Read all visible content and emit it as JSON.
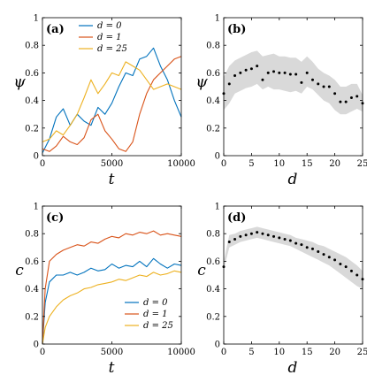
{
  "chart_data": [
    {
      "id": "a",
      "type": "line",
      "panel_label": "(a)",
      "xlabel": "t",
      "ylabel": "ψ",
      "xlim": [
        0,
        10000
      ],
      "ylim": [
        0,
        1
      ],
      "xticks": [
        0,
        5000,
        10000
      ],
      "xtick_labels": [
        "0",
        "5000",
        "10000"
      ],
      "yticks": [
        0,
        0.2,
        0.4,
        0.6,
        0.8,
        1
      ],
      "ytick_labels": [
        "0",
        "0.2",
        "0.4",
        "0.6",
        "0.8",
        "1"
      ],
      "legend_position": "top-left",
      "series": [
        {
          "name": "d = 0",
          "color": "#0072BD",
          "x": [
            0,
            500,
            1000,
            1500,
            2000,
            2500,
            3000,
            3500,
            4000,
            4500,
            5000,
            5500,
            6000,
            6500,
            7000,
            7500,
            8000,
            8500,
            9000,
            9500,
            10000
          ],
          "y": [
            0.02,
            0.12,
            0.28,
            0.34,
            0.22,
            0.3,
            0.25,
            0.22,
            0.35,
            0.3,
            0.38,
            0.5,
            0.6,
            0.58,
            0.7,
            0.72,
            0.78,
            0.65,
            0.55,
            0.4,
            0.28
          ]
        },
        {
          "name": "d = 1",
          "color": "#D95319",
          "x": [
            0,
            500,
            1000,
            1500,
            2000,
            2500,
            3000,
            3500,
            4000,
            4500,
            5000,
            5500,
            6000,
            6500,
            7000,
            7500,
            8000,
            8500,
            9000,
            9500,
            10000
          ],
          "y": [
            0.05,
            0.03,
            0.07,
            0.14,
            0.1,
            0.08,
            0.13,
            0.26,
            0.3,
            0.18,
            0.12,
            0.05,
            0.03,
            0.1,
            0.3,
            0.45,
            0.55,
            0.6,
            0.65,
            0.7,
            0.72
          ]
        },
        {
          "name": "d = 25",
          "color": "#EDB120",
          "x": [
            0,
            500,
            1000,
            1500,
            2000,
            2500,
            3000,
            3500,
            4000,
            4500,
            5000,
            5500,
            6000,
            6500,
            7000,
            7500,
            8000,
            8500,
            9000,
            9500,
            10000
          ],
          "y": [
            0.1,
            0.12,
            0.18,
            0.15,
            0.22,
            0.3,
            0.42,
            0.55,
            0.45,
            0.52,
            0.6,
            0.58,
            0.68,
            0.65,
            0.62,
            0.55,
            0.48,
            0.5,
            0.52,
            0.5,
            0.48
          ]
        }
      ],
      "legend": [
        "d = 0",
        "d = 1",
        "d = 25"
      ]
    },
    {
      "id": "b",
      "type": "scatter",
      "panel_label": "(b)",
      "xlabel": "d",
      "ylabel": "ψ",
      "xlim": [
        0,
        25
      ],
      "ylim": [
        0,
        1
      ],
      "xticks": [
        0,
        5,
        10,
        15,
        20,
        25
      ],
      "xtick_labels": [
        "0",
        "5",
        "10",
        "15",
        "20",
        "25"
      ],
      "yticks": [
        0,
        0.2,
        0.4,
        0.6,
        0.8,
        1
      ],
      "ytick_labels": [
        "0",
        "0.2",
        "0.4",
        "0.6",
        "0.8",
        "1"
      ],
      "band_color": "#d9d9d9",
      "marker_color": "#000000",
      "x": [
        0,
        1,
        2,
        3,
        4,
        5,
        6,
        7,
        8,
        9,
        10,
        11,
        12,
        13,
        14,
        15,
        16,
        17,
        18,
        19,
        20,
        21,
        22,
        23,
        24,
        25
      ],
      "y": [
        0.45,
        0.52,
        0.58,
        0.6,
        0.62,
        0.63,
        0.65,
        0.55,
        0.6,
        0.61,
        0.6,
        0.6,
        0.59,
        0.59,
        0.53,
        0.6,
        0.55,
        0.52,
        0.5,
        0.5,
        0.45,
        0.39,
        0.39,
        0.42,
        0.43,
        0.38
      ],
      "band_lower": [
        0.33,
        0.38,
        0.45,
        0.47,
        0.49,
        0.5,
        0.52,
        0.48,
        0.5,
        0.48,
        0.48,
        0.47,
        0.46,
        0.47,
        0.45,
        0.5,
        0.48,
        0.44,
        0.4,
        0.38,
        0.33,
        0.3,
        0.3,
        0.32,
        0.34,
        0.32
      ],
      "band_upper": [
        0.57,
        0.65,
        0.69,
        0.71,
        0.73,
        0.75,
        0.76,
        0.72,
        0.73,
        0.74,
        0.72,
        0.72,
        0.71,
        0.71,
        0.68,
        0.72,
        0.68,
        0.63,
        0.6,
        0.58,
        0.55,
        0.5,
        0.5,
        0.52,
        0.52,
        0.44
      ]
    },
    {
      "id": "c",
      "type": "line",
      "panel_label": "(c)",
      "xlabel": "t",
      "ylabel": "c",
      "xlim": [
        0,
        10000
      ],
      "ylim": [
        0,
        1
      ],
      "xticks": [
        0,
        5000,
        10000
      ],
      "xtick_labels": [
        "0",
        "5000",
        "10000"
      ],
      "yticks": [
        0,
        0.2,
        0.4,
        0.6,
        0.8,
        1
      ],
      "ytick_labels": [
        "0",
        "0.2",
        "0.4",
        "0.6",
        "0.8",
        "1"
      ],
      "legend_position": "bottom-right",
      "series": [
        {
          "name": "d = 0",
          "color": "#0072BD",
          "x": [
            0,
            200,
            500,
            1000,
            1500,
            2000,
            2500,
            3000,
            3500,
            4000,
            4500,
            5000,
            5500,
            6000,
            6500,
            7000,
            7500,
            8000,
            8500,
            9000,
            9500,
            10000
          ],
          "y": [
            0.0,
            0.3,
            0.45,
            0.5,
            0.5,
            0.52,
            0.5,
            0.52,
            0.55,
            0.53,
            0.54,
            0.58,
            0.55,
            0.57,
            0.56,
            0.6,
            0.56,
            0.62,
            0.58,
            0.55,
            0.58,
            0.57
          ]
        },
        {
          "name": "d = 1",
          "color": "#D95319",
          "x": [
            0,
            200,
            500,
            1000,
            1500,
            2000,
            2500,
            3000,
            3500,
            4000,
            4500,
            5000,
            5500,
            6000,
            6500,
            7000,
            7500,
            8000,
            8500,
            9000,
            9500,
            10000
          ],
          "y": [
            0.0,
            0.4,
            0.6,
            0.65,
            0.68,
            0.7,
            0.72,
            0.71,
            0.74,
            0.73,
            0.76,
            0.78,
            0.77,
            0.8,
            0.79,
            0.81,
            0.8,
            0.82,
            0.79,
            0.8,
            0.79,
            0.78
          ]
        },
        {
          "name": "d = 25",
          "color": "#EDB120",
          "x": [
            0,
            200,
            500,
            1000,
            1500,
            2000,
            2500,
            3000,
            3500,
            4000,
            4500,
            5000,
            5500,
            6000,
            6500,
            7000,
            7500,
            8000,
            8500,
            9000,
            9500,
            10000
          ],
          "y": [
            0.0,
            0.12,
            0.2,
            0.27,
            0.32,
            0.35,
            0.37,
            0.4,
            0.41,
            0.43,
            0.44,
            0.45,
            0.47,
            0.46,
            0.48,
            0.5,
            0.49,
            0.52,
            0.5,
            0.51,
            0.53,
            0.52
          ]
        }
      ],
      "legend": [
        "d = 0",
        "d = 1",
        "d = 25"
      ]
    },
    {
      "id": "d",
      "type": "scatter",
      "panel_label": "(d)",
      "xlabel": "d",
      "ylabel": "c",
      "xlim": [
        0,
        25
      ],
      "ylim": [
        0,
        1
      ],
      "xticks": [
        0,
        5,
        10,
        15,
        20,
        25
      ],
      "xtick_labels": [
        "0",
        "5",
        "10",
        "15",
        "20",
        "25"
      ],
      "yticks": [
        0,
        0.2,
        0.4,
        0.6,
        0.8,
        1
      ],
      "ytick_labels": [
        "0",
        "0.2",
        "0.4",
        "0.6",
        "0.8",
        "1"
      ],
      "band_color": "#d9d9d9",
      "marker_color": "#000000",
      "x": [
        0,
        1,
        2,
        3,
        4,
        5,
        6,
        7,
        8,
        9,
        10,
        11,
        12,
        13,
        14,
        15,
        16,
        17,
        18,
        19,
        20,
        21,
        22,
        23,
        24,
        25
      ],
      "y": [
        0.56,
        0.74,
        0.76,
        0.78,
        0.79,
        0.8,
        0.81,
        0.8,
        0.79,
        0.78,
        0.77,
        0.76,
        0.75,
        0.73,
        0.72,
        0.7,
        0.69,
        0.67,
        0.65,
        0.63,
        0.61,
        0.58,
        0.56,
        0.53,
        0.5,
        0.47
      ],
      "band_lower": [
        0.54,
        0.7,
        0.72,
        0.74,
        0.75,
        0.76,
        0.77,
        0.76,
        0.75,
        0.74,
        0.73,
        0.72,
        0.71,
        0.69,
        0.67,
        0.65,
        0.63,
        0.61,
        0.59,
        0.57,
        0.54,
        0.51,
        0.48,
        0.45,
        0.42,
        0.4
      ],
      "band_upper": [
        0.6,
        0.79,
        0.8,
        0.82,
        0.83,
        0.84,
        0.85,
        0.84,
        0.83,
        0.82,
        0.81,
        0.8,
        0.79,
        0.77,
        0.76,
        0.75,
        0.74,
        0.72,
        0.71,
        0.69,
        0.67,
        0.65,
        0.63,
        0.6,
        0.57,
        0.53
      ]
    }
  ]
}
